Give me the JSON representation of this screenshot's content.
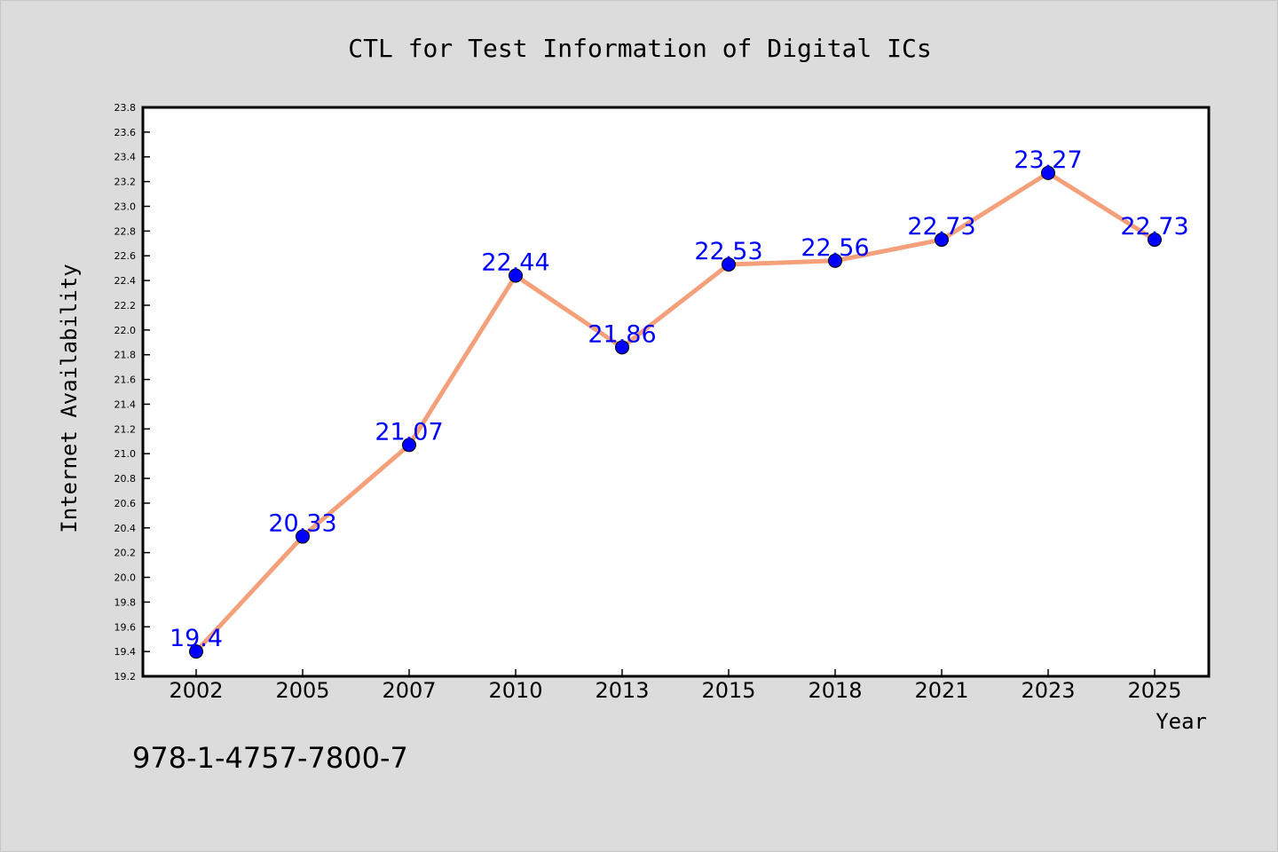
{
  "chart_data": {
    "type": "line",
    "title": "CTL for Test Information of Digital ICs",
    "xlabel": "Year",
    "ylabel": "Internet Availability",
    "categories": [
      "2002",
      "2005",
      "2007",
      "2010",
      "2013",
      "2015",
      "2018",
      "2021",
      "2023",
      "2025"
    ],
    "series": [
      {
        "values": [
          19.4,
          20.33,
          21.07,
          22.44,
          21.86,
          22.53,
          22.56,
          22.73,
          23.27,
          22.73
        ],
        "data_labels": [
          "19.4",
          "20.33",
          "21.07",
          "22.44",
          "21.86",
          "22.53",
          "22.56",
          "22.73",
          "23.27",
          "22.73"
        ],
        "line_color": "#f4a07a",
        "marker_color": "#0000ff"
      }
    ],
    "ylim": [
      19.2,
      23.8
    ],
    "yticks": [
      "19.2",
      "19.4",
      "19.6",
      "19.8",
      "20.0",
      "20.2",
      "20.4",
      "20.6",
      "20.8",
      "21.0",
      "21.2",
      "21.4",
      "21.6",
      "21.8",
      "22.0",
      "22.2",
      "22.4",
      "22.6",
      "22.8",
      "23.0",
      "23.2",
      "23.4",
      "23.6",
      "23.8"
    ],
    "grid": false,
    "legend": "none"
  },
  "footer": {
    "isbn": "978-1-4757-7800-7"
  },
  "colors": {
    "background": "#dcdcdc",
    "plot_background": "#ffffff",
    "line": "#f4a07a",
    "marker": "#0000ff",
    "data_label": "#0000ff"
  }
}
